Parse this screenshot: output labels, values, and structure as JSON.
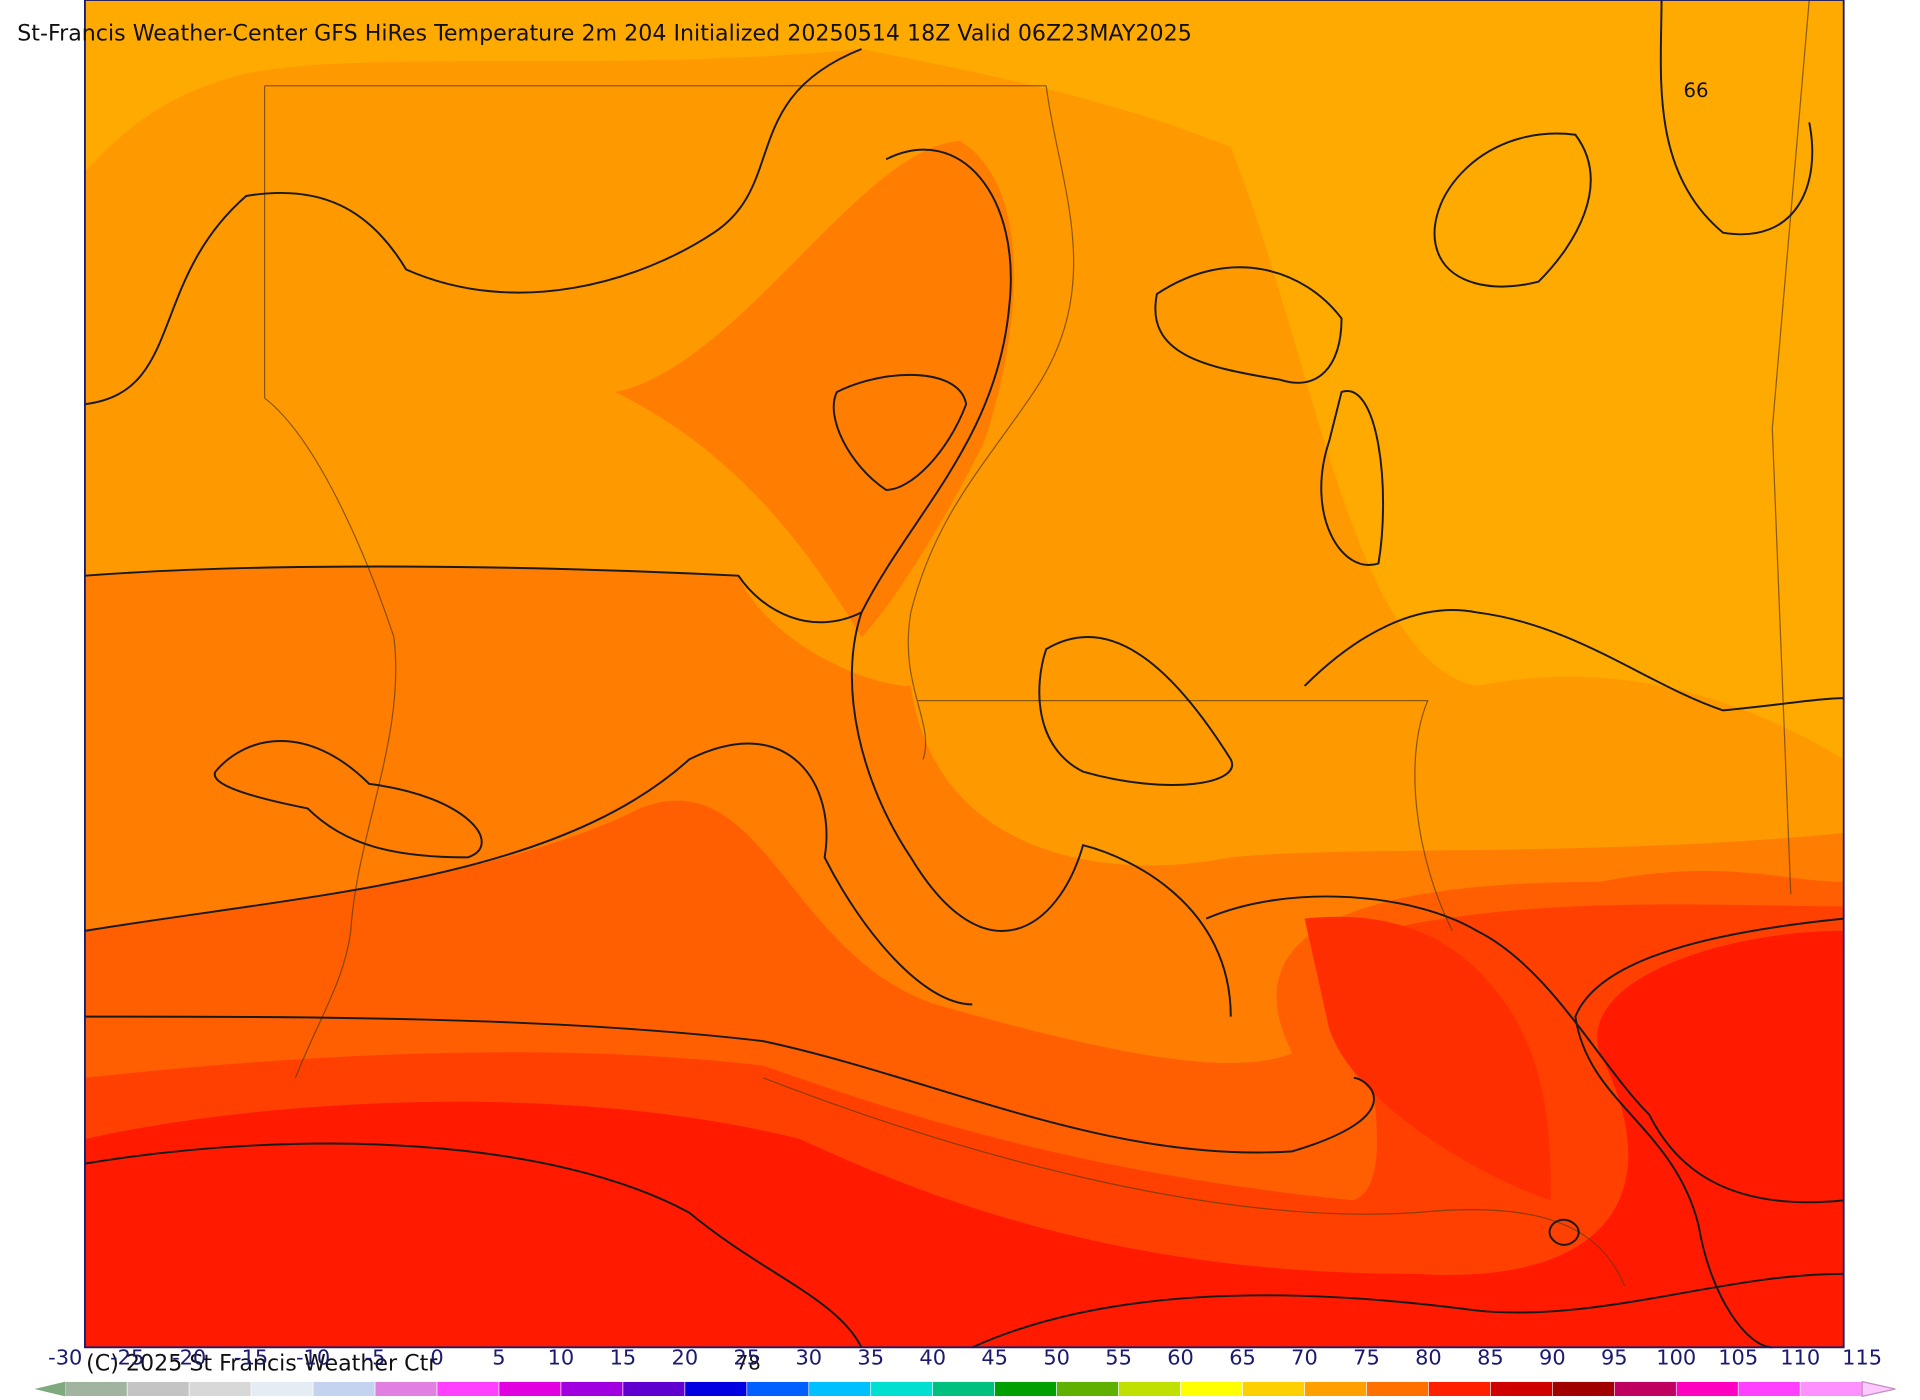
{
  "header": {
    "title": "St-Francis Weather-Center GFS HiRes Temperature 2m  204 Initialized 20250514 18Z Valid 06Z23MAY2025"
  },
  "contour_labels": [
    66,
    78
  ],
  "footer": {
    "copyright": "(C) 2025 St Francis Weather Ctr"
  },
  "colorbar": {
    "ticks": [
      -30,
      -25,
      -20,
      -15,
      -10,
      -5,
      0,
      5,
      10,
      15,
      20,
      25,
      30,
      35,
      40,
      45,
      50,
      55,
      60,
      65,
      70,
      75,
      80,
      85,
      90,
      95,
      100,
      105,
      110,
      115
    ],
    "colors": [
      "#a0b4a0",
      "#c4c4c4",
      "#d8d8d8",
      "#e4ecf4",
      "#c4d4f0",
      "#e080e0",
      "#ff40ff",
      "#e000e0",
      "#a000e0",
      "#6000d0",
      "#0000e0",
      "#0060ff",
      "#00c0ff",
      "#00e0d0",
      "#00c080",
      "#00a000",
      "#60b000",
      "#c0e000",
      "#ffff00",
      "#ffd000",
      "#ffa000",
      "#ff7000",
      "#ff2000",
      "#d00000",
      "#a00000",
      "#c00060",
      "#ff00c0",
      "#ff40ff",
      "#ff90ff"
    ]
  }
}
